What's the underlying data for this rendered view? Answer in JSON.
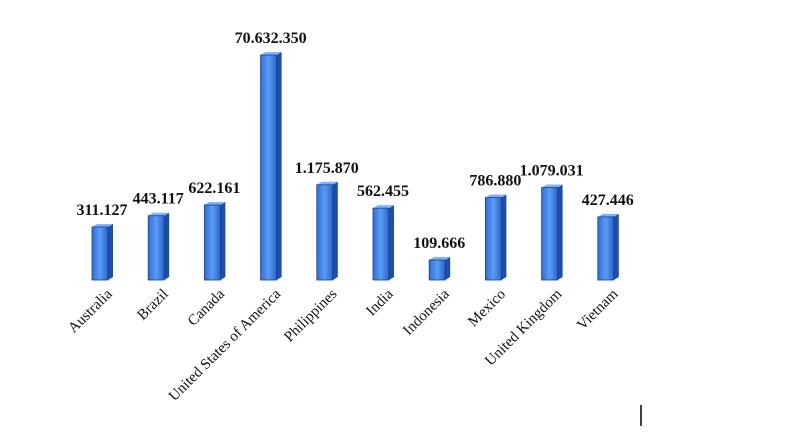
{
  "chart_data": {
    "type": "bar",
    "log_scale": true,
    "color": "#3b7de8",
    "categories": [
      "Australia",
      "Brazil",
      "Canada",
      "United States of America",
      "Philippines",
      "India",
      "Indonesia",
      "Mexico",
      "United Kingdom",
      "Vietnam"
    ],
    "values": [
      311127,
      443117,
      622161,
      70632350,
      1175870,
      562455,
      109666,
      786880,
      1079031,
      427446
    ],
    "value_labels": [
      "311.127",
      "443.117",
      "622.161",
      "70.632.350",
      "1.175.870",
      "562.455",
      "109.666",
      "786.880",
      "1.079.031",
      "427.446"
    ]
  }
}
